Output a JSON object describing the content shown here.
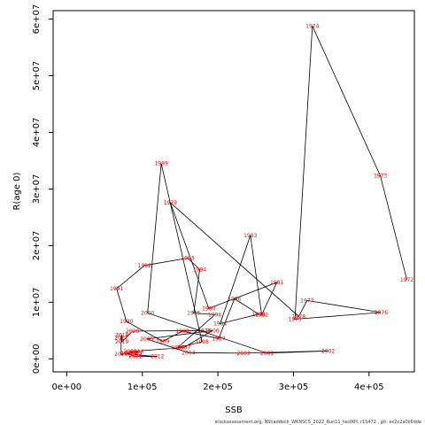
{
  "chart_data": {
    "type": "line",
    "xlabel": "SSB",
    "ylabel": "R(age 0)",
    "xlim": [
      -18000,
      460000
    ],
    "ylim": [
      -2300000,
      61500000
    ],
    "x_ticks": [
      0,
      100000,
      200000,
      300000,
      400000
    ],
    "x_tick_labels": [
      "0e+00",
      "1e+05",
      "2e+05",
      "3e+05",
      "4e+05"
    ],
    "y_ticks": [
      0,
      10000000,
      20000000,
      30000000,
      40000000,
      50000000,
      60000000
    ],
    "y_tick_labels": [
      "0e+00",
      "1e+07",
      "2e+07",
      "3e+07",
      "4e+07",
      "5e+07",
      "6e+07"
    ],
    "grid": false,
    "line_color": "#000000",
    "label_color": "#ff0000",
    "caption": "stockassessment.org, NShaddock_WKNSCS_2022_Run11_testKH, r15472 , git: ec2c2a0c6dde",
    "points": [
      {
        "year": "1972",
        "x": 450000,
        "y": 14000000
      },
      {
        "year": "1973",
        "x": 415000,
        "y": 32300000
      },
      {
        "year": "1974",
        "x": 325000,
        "y": 58800000
      },
      {
        "year": "1975",
        "x": 302000,
        "y": 7000000
      },
      {
        "year": "1976",
        "x": 416000,
        "y": 8200000
      },
      {
        "year": "1977",
        "x": 318000,
        "y": 10300000
      },
      {
        "year": "1978",
        "x": 307000,
        "y": 7500000
      },
      {
        "year": "1979",
        "x": 137000,
        "y": 27600000
      },
      {
        "year": "1980",
        "x": 188000,
        "y": 8900000
      },
      {
        "year": "1981",
        "x": 278000,
        "y": 13500000
      },
      {
        "year": "1982",
        "x": 258000,
        "y": 7800000
      },
      {
        "year": "1983",
        "x": 243000,
        "y": 21800000
      },
      {
        "year": "1984",
        "x": 203000,
        "y": 6200000
      },
      {
        "year": "1985",
        "x": 254000,
        "y": 7900000
      },
      {
        "year": "1986",
        "x": 222000,
        "y": 10600000
      },
      {
        "year": "1987",
        "x": 201000,
        "y": 3600000
      },
      {
        "year": "1988",
        "x": 153000,
        "y": 4900000
      },
      {
        "year": "1989",
        "x": 127000,
        "y": 3100000
      },
      {
        "year": "1990",
        "x": 79000,
        "y": 6600000
      },
      {
        "year": "1991",
        "x": 66000,
        "y": 12400000
      },
      {
        "year": "1992",
        "x": 103000,
        "y": 16500000
      },
      {
        "year": "1993",
        "x": 160000,
        "y": 17800000
      },
      {
        "year": "1994",
        "x": 176000,
        "y": 15800000
      },
      {
        "year": "1995",
        "x": 168000,
        "y": 8100000
      },
      {
        "year": "1996",
        "x": 196000,
        "y": 7800000
      },
      {
        "year": "1997",
        "x": 147000,
        "y": 2000000
      },
      {
        "year": "1998",
        "x": 179000,
        "y": 3000000
      },
      {
        "year": "1999",
        "x": 125000,
        "y": 34500000
      },
      {
        "year": "2000",
        "x": 107000,
        "y": 8100000
      },
      {
        "year": "2001",
        "x": 265000,
        "y": 1000000
      },
      {
        "year": "2002",
        "x": 346000,
        "y": 1400000
      },
      {
        "year": "2003",
        "x": 234000,
        "y": 1000000
      },
      {
        "year": "2004",
        "x": 161000,
        "y": 1100000
      },
      {
        "year": "2005",
        "x": 106000,
        "y": 3500000
      },
      {
        "year": "2006",
        "x": 193000,
        "y": 5000000
      },
      {
        "year": "2007",
        "x": 155000,
        "y": 2000000
      },
      {
        "year": "2008",
        "x": 84000,
        "y": 1300000
      },
      {
        "year": "2009",
        "x": 86000,
        "y": 1100000
      },
      {
        "year": "2010",
        "x": 80000,
        "y": 1000000
      },
      {
        "year": "2011",
        "x": 91000,
        "y": 400000
      },
      {
        "year": "2012",
        "x": 120000,
        "y": 400000
      },
      {
        "year": "2013",
        "x": 91000,
        "y": 700000
      },
      {
        "year": "2014",
        "x": 93000,
        "y": 1300000
      },
      {
        "year": "2015",
        "x": 91000,
        "y": 1100000
      },
      {
        "year": "2016",
        "x": 72000,
        "y": 800000
      },
      {
        "year": "2017",
        "x": 72000,
        "y": 3700000
      },
      {
        "year": "2018",
        "x": 73000,
        "y": 4200000
      },
      {
        "year": "2019",
        "x": 73000,
        "y": 3000000
      },
      {
        "year": "2020",
        "x": 87000,
        "y": 4900000
      },
      {
        "year": "2021",
        "x": 182000,
        "y": 5000000
      }
    ]
  }
}
